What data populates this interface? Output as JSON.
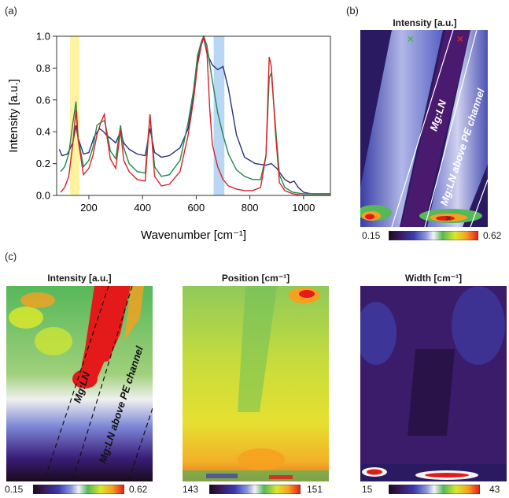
{
  "panels": {
    "a": "(a)",
    "b": "(b)",
    "c": "(c)"
  },
  "chart_data": [
    {
      "type": "line",
      "xlabel": "Wavenumber [cm⁻¹]",
      "ylabel": "Intensity [a.u.]",
      "xlim": [
        80,
        1100
      ],
      "ylim": [
        0,
        1.0
      ],
      "xticks": [
        200,
        400,
        600,
        800,
        1000
      ],
      "yticks": [
        0.0,
        0.2,
        0.4,
        0.6,
        0.8,
        1.0
      ],
      "x_tick_labels": [
        "200",
        "400",
        "600",
        "800",
        "1000"
      ],
      "y_tick_labels": [
        "0.0",
        "0.2",
        "0.4",
        "0.6",
        "0.8",
        "1.0"
      ],
      "highlight_bands": [
        {
          "from": 130,
          "to": 165,
          "color": "#fff3a0"
        },
        {
          "from": 665,
          "to": 705,
          "color": "#b7d7f4"
        }
      ],
      "series": [
        {
          "color": "#2b2f80",
          "x": [
            90,
            100,
            120,
            140,
            152,
            160,
            180,
            200,
            220,
            240,
            255,
            265,
            280,
            300,
            318,
            330,
            350,
            380,
            410,
            428,
            445,
            470,
            500,
            540,
            570,
            590,
            605,
            620,
            628,
            640,
            660,
            680,
            700,
            720,
            750,
            780,
            820,
            860,
            880,
            900,
            930,
            950,
            965,
            980,
            1000,
            1030,
            1060,
            1100
          ],
          "values": [
            0.29,
            0.25,
            0.26,
            0.33,
            0.44,
            0.36,
            0.26,
            0.27,
            0.37,
            0.42,
            0.4,
            0.38,
            0.36,
            0.33,
            0.4,
            0.33,
            0.29,
            0.26,
            0.25,
            0.42,
            0.27,
            0.24,
            0.25,
            0.3,
            0.42,
            0.62,
            0.85,
            0.95,
            0.99,
            0.89,
            0.82,
            0.79,
            0.81,
            0.67,
            0.38,
            0.24,
            0.2,
            0.19,
            0.2,
            0.17,
            0.1,
            0.08,
            0.09,
            0.05,
            0.02,
            0.01,
            0.01,
            0.01
          ]
        },
        {
          "color": "#1e8a4a",
          "x": [
            95,
            110,
            125,
            140,
            152,
            160,
            180,
            200,
            215,
            230,
            245,
            258,
            265,
            280,
            300,
            318,
            330,
            350,
            380,
            410,
            428,
            445,
            470,
            500,
            540,
            570,
            590,
            605,
            620,
            628,
            640,
            660,
            680,
            700,
            720,
            750,
            780,
            810,
            840,
            860,
            872,
            880,
            895,
            910,
            930,
            960,
            1000,
            1050,
            1100
          ],
          "values": [
            0.15,
            0.18,
            0.26,
            0.45,
            0.59,
            0.36,
            0.18,
            0.22,
            0.3,
            0.44,
            0.46,
            0.47,
            0.42,
            0.28,
            0.23,
            0.44,
            0.3,
            0.2,
            0.15,
            0.14,
            0.51,
            0.18,
            0.12,
            0.13,
            0.22,
            0.46,
            0.66,
            0.88,
            0.97,
            1.0,
            0.94,
            0.72,
            0.52,
            0.38,
            0.26,
            0.16,
            0.12,
            0.1,
            0.1,
            0.25,
            0.74,
            0.77,
            0.44,
            0.13,
            0.05,
            0.02,
            0.01,
            0.01,
            0.01
          ]
        },
        {
          "color": "#d8232a",
          "x": [
            95,
            110,
            125,
            140,
            152,
            160,
            180,
            200,
            215,
            230,
            245,
            258,
            265,
            280,
            300,
            318,
            330,
            350,
            380,
            410,
            428,
            445,
            470,
            500,
            540,
            570,
            590,
            605,
            620,
            628,
            640,
            650,
            660,
            680,
            700,
            720,
            750,
            780,
            810,
            840,
            860,
            872,
            880,
            895,
            910,
            930,
            960,
            1000,
            1050,
            1100
          ],
          "values": [
            0.02,
            0.05,
            0.12,
            0.32,
            0.54,
            0.35,
            0.13,
            0.17,
            0.25,
            0.38,
            0.46,
            0.51,
            0.4,
            0.23,
            0.17,
            0.41,
            0.22,
            0.15,
            0.1,
            0.09,
            0.51,
            0.12,
            0.06,
            0.07,
            0.15,
            0.38,
            0.6,
            0.82,
            0.95,
            1.0,
            0.9,
            0.55,
            0.32,
            0.18,
            0.1,
            0.06,
            0.04,
            0.03,
            0.03,
            0.05,
            0.25,
            0.87,
            0.81,
            0.4,
            0.08,
            0.03,
            0.01,
            0.0,
            0.0,
            0.0
          ]
        }
      ]
    },
    {
      "type": "heatmap",
      "title": "Intensity [a.u.]",
      "colorbar_min": "0.15",
      "colorbar_max": "0.62",
      "annotations": [
        "Mg:LN",
        "Mg:LN above PE channel"
      ],
      "markers": [
        {
          "symbol": "×",
          "color": "#4bb54a"
        },
        {
          "symbol": "×",
          "color": "#d8232a"
        },
        {
          "symbol": "×",
          "color": "#333333"
        }
      ]
    },
    {
      "type": "heatmap",
      "title": "Intensity [a.u.]",
      "colorbar_min": "0.15",
      "colorbar_max": "0.62",
      "annotations": [
        "Mg:LN",
        "Mg:LN above PE channel"
      ]
    },
    {
      "type": "heatmap",
      "title": "Position [cm⁻¹]",
      "colorbar_min": "143",
      "colorbar_max": "151"
    },
    {
      "type": "heatmap",
      "title": "Width [cm⁻¹]",
      "colorbar_min": "15",
      "colorbar_max": "43"
    }
  ],
  "colors": {
    "colormap": [
      "#1a0a1a",
      "#3a1858",
      "#3b3bb0",
      "#8f9ae0",
      "#f4f4f4",
      "#56b85a",
      "#d8e82c",
      "#f7a020",
      "#e41a1a"
    ]
  }
}
